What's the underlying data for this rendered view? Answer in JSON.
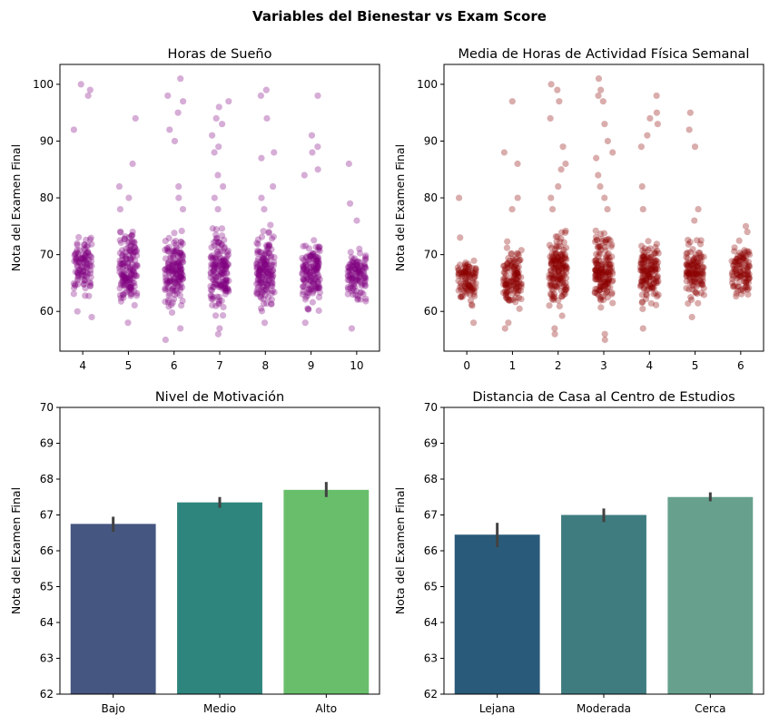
{
  "suptitle": "Variables del Bienestar vs Exam Score",
  "chart_data": [
    {
      "type": "scatter",
      "title": "Horas de Sueño",
      "xlabel": "",
      "ylabel": "Nota del Examen Final",
      "categories": [
        "4",
        "5",
        "6",
        "7",
        "8",
        "9",
        "10"
      ],
      "ylim": [
        53,
        103.5
      ],
      "yticks": [
        60,
        70,
        80,
        90,
        100
      ],
      "color": "#800080",
      "bulk_range": [
        59,
        76
      ],
      "strips": [
        {
          "x": "4",
          "core": [
            62,
            74
          ],
          "outliers": [
            100,
            99,
            98,
            92,
            59,
            60
          ]
        },
        {
          "x": "5",
          "core": [
            59,
            76
          ],
          "outliers": [
            94,
            86,
            82,
            80,
            78,
            58
          ]
        },
        {
          "x": "6",
          "core": [
            58,
            76
          ],
          "outliers": [
            101,
            98,
            97,
            95,
            92,
            90,
            82,
            80,
            78,
            57,
            55
          ]
        },
        {
          "x": "7",
          "core": [
            58,
            76
          ],
          "outliers": [
            97,
            96,
            94,
            93,
            91,
            89,
            88,
            84,
            82,
            80,
            78,
            57,
            56
          ]
        },
        {
          "x": "8",
          "core": [
            58,
            76
          ],
          "outliers": [
            99,
            98,
            94,
            88,
            87,
            82,
            80,
            78,
            58
          ]
        },
        {
          "x": "9",
          "core": [
            59,
            75
          ],
          "outliers": [
            98,
            91,
            89,
            88,
            85,
            84,
            58
          ]
        },
        {
          "x": "10",
          "core": [
            60,
            73
          ],
          "outliers": [
            86,
            79,
            76,
            57
          ]
        }
      ]
    },
    {
      "type": "scatter",
      "title": "Media de Horas de Actividad Física Semanal",
      "xlabel": "",
      "ylabel": "Nota del Examen Final",
      "categories": [
        "0",
        "1",
        "2",
        "3",
        "4",
        "5",
        "6"
      ],
      "ylim": [
        53,
        103.5
      ],
      "yticks": [
        60,
        70,
        80,
        90,
        100
      ],
      "color": "#8b0000",
      "strips": [
        {
          "x": "0",
          "core": [
            60,
            71
          ],
          "outliers": [
            80,
            73,
            58,
            61
          ]
        },
        {
          "x": "1",
          "core": [
            59,
            73
          ],
          "outliers": [
            97,
            88,
            86,
            80,
            78,
            58,
            57
          ]
        },
        {
          "x": "2",
          "core": [
            58,
            76
          ],
          "outliers": [
            100,
            99,
            97,
            94,
            89,
            86,
            85,
            82,
            80,
            78,
            57,
            56
          ]
        },
        {
          "x": "3",
          "core": [
            58,
            76
          ],
          "outliers": [
            101,
            99,
            98,
            97,
            93,
            90,
            88,
            87,
            84,
            82,
            80,
            78,
            56,
            55
          ]
        },
        {
          "x": "4",
          "core": [
            59,
            75
          ],
          "outliers": [
            98,
            95,
            94,
            93,
            91,
            89,
            82,
            78,
            57
          ]
        },
        {
          "x": "5",
          "core": [
            60,
            74
          ],
          "outliers": [
            95,
            92,
            89,
            78,
            76,
            59
          ]
        },
        {
          "x": "6",
          "core": [
            61,
            73
          ],
          "outliers": [
            75,
            74,
            63
          ]
        }
      ]
    },
    {
      "type": "bar",
      "title": "Nivel de Motivación",
      "xlabel": "",
      "ylabel": "Nota del Examen Final",
      "categories": [
        "Bajo",
        "Medio",
        "Alto"
      ],
      "values": [
        66.75,
        67.35,
        67.7
      ],
      "errors": [
        [
          66.53,
          66.95
        ],
        [
          67.2,
          67.5
        ],
        [
          67.5,
          67.92
        ]
      ],
      "colors": [
        "#455681",
        "#2e857d",
        "#69be6b"
      ],
      "ylim": [
        62,
        70
      ],
      "yticks": [
        62,
        63,
        64,
        65,
        66,
        67,
        68,
        69,
        70
      ]
    },
    {
      "type": "bar",
      "title": "Distancia de Casa al Centro de Estudios",
      "xlabel": "",
      "ylabel": "Nota del Examen Final",
      "categories": [
        "Lejana",
        "Moderada",
        "Cerca"
      ],
      "values": [
        66.45,
        67.0,
        67.5
      ],
      "errors": [
        [
          66.1,
          66.78
        ],
        [
          66.8,
          67.18
        ],
        [
          67.38,
          67.63
        ]
      ],
      "colors": [
        "#2a5a7a",
        "#3f7c80",
        "#67a18e"
      ],
      "ylim": [
        62,
        70
      ],
      "yticks": [
        62,
        63,
        64,
        65,
        66,
        67,
        68,
        69,
        70
      ]
    }
  ]
}
